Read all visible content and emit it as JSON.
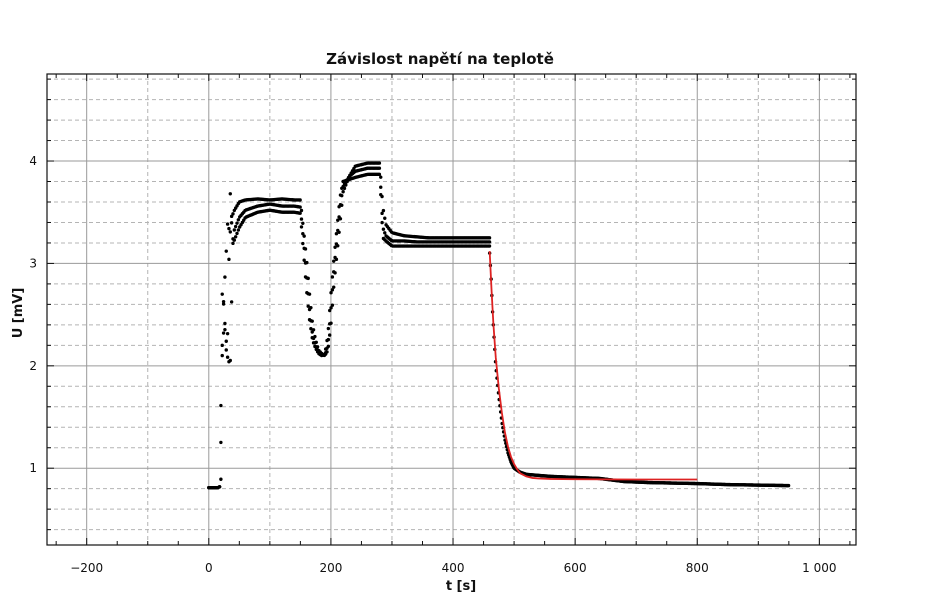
{
  "chart_data": {
    "type": "scatter",
    "title": "Závislost napětí na teplotě",
    "xlabel": "t [s]",
    "ylabel": "U [mV]",
    "xlim": [
      -265,
      1060
    ],
    "ylim": [
      0.25,
      4.85
    ],
    "x_ticks": [
      -200,
      0,
      200,
      400,
      600,
      800,
      1000
    ],
    "x_tick_labels": [
      "−200",
      "0",
      "200",
      "400",
      "600",
      "800",
      "1 000"
    ],
    "y_ticks": [
      1,
      2,
      3,
      4
    ],
    "y_tick_labels": [
      "1",
      "2",
      "3",
      "4"
    ],
    "grid": true,
    "legend": "none",
    "colors": {
      "points": "#000000",
      "fit": "#dd2222",
      "grid_major": "#9a9a9a",
      "grid_minor": "#b4b4b4"
    },
    "series": [
      {
        "kind": "measured-points",
        "bands": [
          {
            "x": [
              0,
              5,
              10,
              15,
              18,
              20,
              22,
              25,
              28,
              30,
              35,
              40,
              50,
              60,
              80,
              100,
              120,
              140,
              150,
              160,
              165,
              170,
              175,
              180,
              185,
              190,
              195,
              200,
              205,
              210,
              215,
              220,
              230,
              240,
              260,
              280,
              285,
              290,
              300,
              320,
              340,
              360,
              380,
              400,
              420,
              440,
              460
            ],
            "y": [
              0.81,
              0.81,
              0.81,
              0.81,
              0.82,
              1.3,
              2.2,
              2.75,
              3.0,
              3.4,
              3.3,
              3.5,
              3.6,
              3.62,
              3.63,
              3.62,
              3.63,
              3.62,
              3.62,
              3.05,
              2.7,
              2.4,
              2.25,
              2.15,
              2.12,
              2.1,
              2.15,
              2.4,
              2.8,
              3.1,
              3.4,
              3.7,
              3.85,
              3.95,
              3.98,
              3.98,
              3.55,
              3.38,
              3.3,
              3.27,
              3.26,
              3.25,
              3.25,
              3.25,
              3.25,
              3.25,
              3.25
            ]
          },
          {
            "x": [
              0,
              5,
              10,
              15,
              18,
              20,
              22,
              25,
              28,
              30,
              35,
              40,
              50,
              60,
              80,
              100,
              120,
              140,
              150,
              160,
              165,
              170,
              175,
              180,
              185,
              190,
              195,
              200,
              205,
              210,
              215,
              220,
              230,
              240,
              260,
              280,
              285,
              290,
              300,
              320,
              340,
              360,
              380,
              400,
              420,
              440,
              460
            ],
            "y": [
              0.81,
              0.81,
              0.81,
              0.81,
              0.82,
              1.7,
              2.1,
              2.4,
              2.3,
              2.1,
              2.0,
              3.3,
              3.45,
              3.52,
              3.56,
              3.58,
              3.56,
              3.56,
              3.55,
              2.9,
              2.55,
              2.3,
              2.2,
              2.13,
              2.11,
              2.1,
              2.2,
              2.55,
              2.95,
              3.25,
              3.55,
              3.75,
              3.85,
              3.9,
              3.93,
              3.93,
              3.35,
              3.27,
              3.22,
              3.22,
              3.21,
              3.21,
              3.21,
              3.21,
              3.21,
              3.21,
              3.21
            ]
          },
          {
            "x": [
              0,
              5,
              10,
              15,
              18,
              20,
              22,
              25,
              28,
              30,
              35,
              40,
              50,
              60,
              80,
              100,
              120,
              140,
              150,
              160,
              165,
              170,
              175,
              180,
              185,
              190,
              195,
              200,
              205,
              210,
              215,
              220,
              230,
              240,
              260,
              280,
              285,
              290,
              300,
              320,
              340,
              360,
              380,
              400,
              420,
              440,
              460
            ],
            "y": [
              0.81,
              0.81,
              0.81,
              0.81,
              0.82,
              0.9,
              2.7,
              2.6,
              2.2,
              2.05,
              3.7,
              3.2,
              3.35,
              3.45,
              3.5,
              3.52,
              3.5,
              3.5,
              3.49,
              2.75,
              2.45,
              2.25,
              2.17,
              2.12,
              2.1,
              2.11,
              2.3,
              2.7,
              3.05,
              3.35,
              3.65,
              3.8,
              3.82,
              3.84,
              3.87,
              3.87,
              3.25,
              3.22,
              3.17,
              3.17,
              3.17,
              3.17,
              3.17,
              3.17,
              3.17,
              3.17,
              3.17
            ]
          },
          {
            "x": [
              460,
              462,
              465,
              468,
              470,
              475,
              480,
              485,
              490,
              495,
              500,
              510,
              520,
              540,
              560,
              580,
              600,
              640,
              680,
              720,
              760,
              800,
              850,
              900,
              950
            ],
            "y": [
              3.1,
              2.9,
              2.5,
              2.2,
              2.0,
              1.7,
              1.45,
              1.28,
              1.15,
              1.06,
              1.0,
              0.96,
              0.94,
              0.93,
              0.92,
              0.915,
              0.91,
              0.9,
              0.87,
              0.86,
              0.855,
              0.85,
              0.84,
              0.835,
              0.83
            ]
          }
        ]
      },
      {
        "kind": "fit-curve",
        "x": [
          460,
          463,
          466,
          470,
          475,
          480,
          485,
          490,
          495,
          500,
          505,
          510,
          520,
          530,
          540,
          560,
          580,
          600,
          650,
          700,
          750,
          800
        ],
        "y": [
          3.12,
          2.75,
          2.42,
          2.08,
          1.78,
          1.54,
          1.35,
          1.21,
          1.11,
          1.04,
          0.99,
          0.95,
          0.92,
          0.905,
          0.9,
          0.895,
          0.893,
          0.892,
          0.891,
          0.89,
          0.89,
          0.89
        ]
      }
    ]
  }
}
